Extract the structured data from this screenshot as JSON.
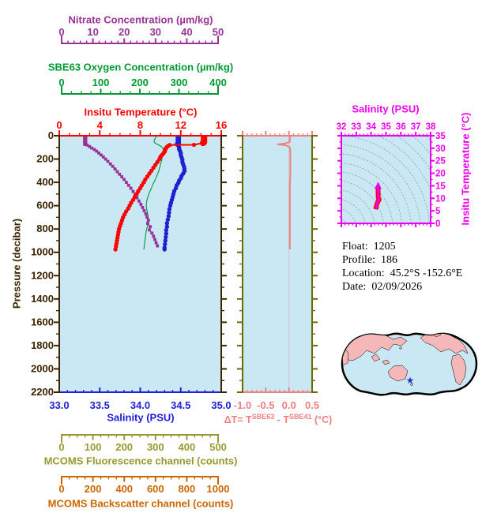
{
  "colors": {
    "page_bg": "#FFFFFF",
    "plot_bg": "#C9E8F3",
    "temperature": "#FF0000",
    "salinity": "#1F1FD6",
    "nitrate": "#993399",
    "oxygen": "#009933",
    "pressure_axis": "#3D2400",
    "mid_axis_olive": "#6B6B00",
    "delta_t": "#F08080",
    "fluorescence": "#999933",
    "backscatter": "#CC6600",
    "ts_magenta": "#EE00EE",
    "ts_track_red": "#FF0000",
    "ts_contour": "#9AA8B0",
    "zero_gridline": "#C8C8C8",
    "land": "#F5B8B8",
    "map_outline": "#000000",
    "star": "#2233CC"
  },
  "info": {
    "rows": [
      {
        "label": "Float:",
        "value": "1205"
      },
      {
        "label": "Profile:",
        "value": "186"
      },
      {
        "label": "Location:",
        "value": "45.2°S  -152.6°E"
      },
      {
        "label": "Date:",
        "value": "02/09/2026"
      }
    ]
  },
  "map": {
    "name": "world-map",
    "marker": "float-location-star",
    "star_glyph": "★"
  },
  "chart_data": {
    "main_profile_panel": {
      "type": "line",
      "ylabel": "Pressure (decibar)",
      "ylim": [
        0,
        2200
      ],
      "pressure_ticks": [
        "0",
        "200",
        "400",
        "600",
        "800",
        "1000",
        "1200",
        "1400",
        "1600",
        "1800",
        "2000",
        "2200"
      ],
      "pressure_minor_step": 100,
      "series": [
        {
          "id": "temperature",
          "name": "Insitu Temperature (°C)",
          "color": "#FF0000",
          "xlim": [
            0,
            16
          ],
          "ticks": [
            "0",
            "4",
            "8",
            "12",
            "16"
          ],
          "minor_per_major": 3,
          "points": [
            [
              14.3,
              0
            ],
            [
              14.3,
              8
            ],
            [
              14.3,
              16
            ],
            [
              14.3,
              24
            ],
            [
              14.3,
              32
            ],
            [
              14.3,
              40
            ],
            [
              14.3,
              48
            ],
            [
              14.3,
              56
            ],
            [
              14.2,
              62
            ],
            [
              13.3,
              78
            ],
            [
              10.9,
              80
            ],
            [
              10.7,
              90
            ],
            [
              10.6,
              100
            ],
            [
              10.5,
              112
            ],
            [
              10.45,
              125
            ],
            [
              10.4,
              138
            ],
            [
              10.3,
              150
            ],
            [
              10.15,
              165
            ],
            [
              10.0,
              180
            ],
            [
              9.9,
              200
            ],
            [
              9.7,
              225
            ],
            [
              9.5,
              250
            ],
            [
              9.3,
              275
            ],
            [
              9.1,
              300
            ],
            [
              8.9,
              325
            ],
            [
              8.7,
              350
            ],
            [
              8.5,
              375
            ],
            [
              8.35,
              400
            ],
            [
              8.15,
              425
            ],
            [
              8.0,
              450
            ],
            [
              7.8,
              475
            ],
            [
              7.65,
              500
            ],
            [
              7.45,
              525
            ],
            [
              7.3,
              550
            ],
            [
              7.1,
              575
            ],
            [
              6.95,
              600
            ],
            [
              6.8,
              625
            ],
            [
              6.6,
              650
            ],
            [
              6.45,
              675
            ],
            [
              6.3,
              700
            ],
            [
              6.2,
              725
            ],
            [
              6.1,
              750
            ],
            [
              6.0,
              775
            ],
            [
              5.9,
              800
            ],
            [
              5.85,
              825
            ],
            [
              5.8,
              850
            ],
            [
              5.75,
              875
            ],
            [
              5.7,
              900
            ],
            [
              5.65,
              925
            ],
            [
              5.6,
              950
            ],
            [
              5.55,
              975
            ]
          ]
        },
        {
          "id": "salinity",
          "name": "Salinity (PSU)",
          "color": "#1F1FD6",
          "xlim": [
            33,
            35
          ],
          "ticks": [
            "33.0",
            "33.5",
            "34.0",
            "34.5",
            "35.0"
          ],
          "minor_per_major": 4,
          "points": [
            [
              34.47,
              0
            ],
            [
              34.47,
              12
            ],
            [
              34.47,
              25
            ],
            [
              34.47,
              38
            ],
            [
              34.47,
              50
            ],
            [
              34.47,
              62
            ],
            [
              34.46,
              72
            ],
            [
              34.47,
              85
            ],
            [
              34.48,
              100
            ],
            [
              34.48,
              115
            ],
            [
              34.49,
              130
            ],
            [
              34.5,
              148
            ],
            [
              34.5,
              165
            ],
            [
              34.51,
              185
            ],
            [
              34.52,
              205
            ],
            [
              34.52,
              225
            ],
            [
              34.53,
              245
            ],
            [
              34.54,
              265
            ],
            [
              34.545,
              285
            ],
            [
              34.545,
              305
            ],
            [
              34.53,
              325
            ],
            [
              34.51,
              345
            ],
            [
              34.5,
              365
            ],
            [
              34.48,
              385
            ],
            [
              34.47,
              405
            ],
            [
              34.45,
              425
            ],
            [
              34.44,
              450
            ],
            [
              34.42,
              475
            ],
            [
              34.41,
              500
            ],
            [
              34.4,
              525
            ],
            [
              34.39,
              550
            ],
            [
              34.38,
              575
            ],
            [
              34.37,
              600
            ],
            [
              34.36,
              630
            ],
            [
              34.355,
              660
            ],
            [
              34.35,
              690
            ],
            [
              34.34,
              720
            ],
            [
              34.33,
              750
            ],
            [
              34.33,
              780
            ],
            [
              34.32,
              810
            ],
            [
              34.32,
              840
            ],
            [
              34.315,
              870
            ],
            [
              34.31,
              900
            ],
            [
              34.305,
              930
            ],
            [
              34.3,
              960
            ],
            [
              34.3,
              975
            ]
          ]
        },
        {
          "id": "nitrate",
          "name": "Nitrate Concentration (µm/kg)",
          "color": "#993399",
          "xlim": [
            0,
            50
          ],
          "ticks": [
            "0",
            "10",
            "20",
            "30",
            "40",
            "50"
          ],
          "minor_per_major": 4,
          "points": [
            [
              8.0,
              0
            ],
            [
              8.0,
              10
            ],
            [
              8.0,
              20
            ],
            [
              8.0,
              30
            ],
            [
              8.0,
              40
            ],
            [
              8.0,
              50
            ],
            [
              8.0,
              60
            ],
            [
              8.0,
              70
            ],
            [
              8.6,
              80
            ],
            [
              9.3,
              92
            ],
            [
              10.0,
              105
            ],
            [
              10.8,
              118
            ],
            [
              11.5,
              132
            ],
            [
              12.2,
              148
            ],
            [
              12.9,
              165
            ],
            [
              13.6,
              182
            ],
            [
              14.3,
              200
            ],
            [
              15.0,
              220
            ],
            [
              15.8,
              242
            ],
            [
              16.5,
              262
            ],
            [
              17.2,
              285
            ],
            [
              17.9,
              308
            ],
            [
              18.6,
              330
            ],
            [
              19.3,
              352
            ],
            [
              20.0,
              375
            ],
            [
              20.7,
              400
            ],
            [
              21.4,
              425
            ],
            [
              22.1,
              450
            ],
            [
              22.8,
              478
            ],
            [
              23.4,
              505
            ],
            [
              24.0,
              532
            ],
            [
              24.6,
              560
            ],
            [
              25.2,
              588
            ],
            [
              25.7,
              615
            ],
            [
              26.2,
              642
            ],
            [
              26.7,
              670
            ],
            [
              27.1,
              698
            ],
            [
              27.5,
              725
            ],
            [
              27.3,
              752
            ],
            [
              28.1,
              780
            ],
            [
              27.8,
              808
            ],
            [
              28.6,
              835
            ],
            [
              29.1,
              862
            ],
            [
              29.5,
              890
            ],
            [
              29.9,
              918
            ],
            [
              30.3,
              945
            ]
          ]
        },
        {
          "id": "oxygen",
          "name": "SBE63 Oxygen Concentration (µm/kg)",
          "color": "#009933",
          "xlim": [
            0,
            400
          ],
          "ticks": [
            "0",
            "100",
            "200",
            "300",
            "400"
          ],
          "minor_per_major": 3,
          "points": [
            [
              240,
              0
            ],
            [
              238,
              15
            ],
            [
              236,
              30
            ],
            [
              234,
              45
            ],
            [
              235,
              58
            ],
            [
              240,
              70
            ],
            [
              247,
              82
            ],
            [
              253,
              95
            ],
            [
              256,
              110
            ],
            [
              257,
              125
            ],
            [
              256,
              145
            ],
            [
              255,
              165
            ],
            [
              254,
              185
            ],
            [
              253,
              210
            ],
            [
              251,
              235
            ],
            [
              249,
              260
            ],
            [
              247,
              285
            ],
            [
              245,
              310
            ],
            [
              242,
              335
            ],
            [
              239,
              360
            ],
            [
              236,
              385
            ],
            [
              232,
              410
            ],
            [
              229,
              435
            ],
            [
              226,
              460
            ],
            [
              223,
              485
            ],
            [
              220,
              510
            ],
            [
              218,
              535
            ],
            [
              216,
              560
            ],
            [
              215,
              585
            ],
            [
              215,
              610
            ],
            [
              216,
              635
            ],
            [
              218,
              660
            ],
            [
              219,
              685
            ],
            [
              220,
              710
            ],
            [
              220,
              735
            ],
            [
              219,
              760
            ],
            [
              217,
              785
            ],
            [
              215,
              810
            ],
            [
              214,
              835
            ],
            [
              213,
              860
            ],
            [
              212,
              885
            ],
            [
              211,
              910
            ],
            [
              210,
              940
            ],
            [
              209,
              975
            ]
          ]
        }
      ],
      "extra_scales": [
        {
          "id": "fluorescence",
          "name": "MCOMS Fluorescence channel (counts)",
          "color": "#999933",
          "xlim": [
            0,
            500
          ],
          "ticks": [
            "0",
            "100",
            "200",
            "300",
            "400",
            "500"
          ],
          "minor_per_major": 3
        },
        {
          "id": "backscatter",
          "name": "MCOMS Backscatter channel (counts)",
          "color": "#CC6600",
          "xlim": [
            0,
            1000
          ],
          "ticks": [
            "0",
            "200",
            "400",
            "600",
            "800",
            "1000"
          ],
          "minor_per_major": 3
        }
      ]
    },
    "delta_t_panel": {
      "type": "line",
      "xlim": [
        -1.0,
        0.5
      ],
      "ticks": [
        "-1.0",
        "-0.5",
        "0.0",
        "0.5"
      ],
      "minor_per_major": 4,
      "color": "#F08080",
      "xlabel_parts": {
        "prefix": "ΔT= T",
        "sup1": "SBE63",
        "mid": " - T",
        "sup2": "SBE41",
        "suffix": " (°C)"
      },
      "points": [
        [
          0.02,
          0
        ],
        [
          0.02,
          15
        ],
        [
          0.02,
          30
        ],
        [
          0.02,
          45
        ],
        [
          0.01,
          55
        ],
        [
          -0.05,
          62
        ],
        [
          -0.1,
          68
        ],
        [
          -0.25,
          74
        ],
        [
          -0.1,
          80
        ],
        [
          -0.02,
          88
        ],
        [
          0.02,
          100
        ],
        [
          0.03,
          130
        ],
        [
          0.03,
          170
        ],
        [
          0.03,
          220
        ],
        [
          0.03,
          280
        ],
        [
          0.03,
          350
        ],
        [
          0.02,
          420
        ],
        [
          0.02,
          500
        ],
        [
          0.02,
          580
        ],
        [
          0.02,
          660
        ],
        [
          0.02,
          740
        ],
        [
          0.02,
          820
        ],
        [
          0.02,
          900
        ],
        [
          0.02,
          975
        ]
      ]
    },
    "ts_panel": {
      "type": "line",
      "xlabel": "Salinity (PSU)",
      "ylabel": "Insitu Temperature (°C)",
      "xlim": [
        32,
        38
      ],
      "ylim": [
        0,
        35
      ],
      "x_ticks": [
        "32",
        "33",
        "34",
        "35",
        "36",
        "37",
        "38"
      ],
      "y_ticks": [
        "0",
        "5",
        "10",
        "15",
        "20",
        "25",
        "30",
        "35"
      ],
      "track": [
        [
          34.3,
          5.6
        ],
        [
          34.31,
          5.9
        ],
        [
          34.33,
          6.3
        ],
        [
          34.35,
          6.8
        ],
        [
          34.37,
          7.2
        ],
        [
          34.39,
          7.7
        ],
        [
          34.42,
          8.1
        ],
        [
          34.45,
          8.6
        ],
        [
          34.49,
          9.0
        ],
        [
          34.53,
          9.3
        ],
        [
          34.54,
          9.5
        ],
        [
          34.51,
          9.8
        ],
        [
          34.48,
          10.2
        ],
        [
          34.47,
          10.6
        ],
        [
          34.48,
          11.2
        ],
        [
          34.47,
          12.0
        ],
        [
          34.47,
          12.8
        ],
        [
          34.47,
          13.5
        ],
        [
          34.47,
          14.1
        ]
      ]
    }
  }
}
